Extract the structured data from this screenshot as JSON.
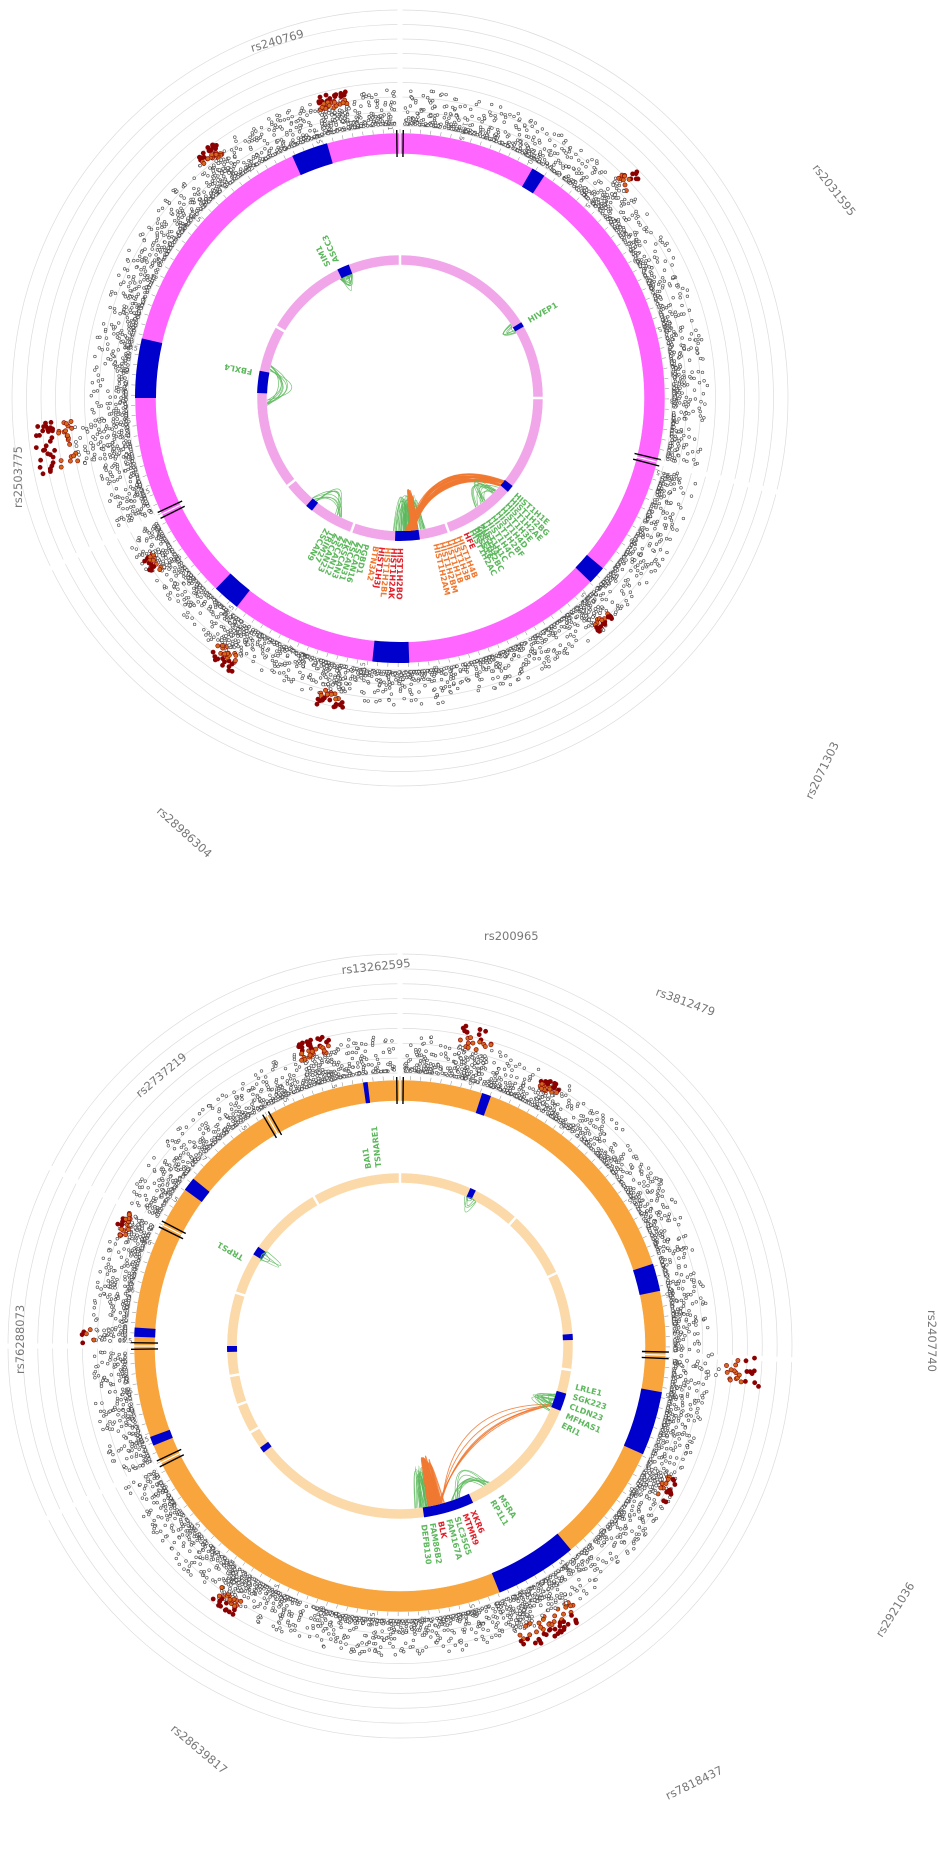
{
  "colors": {
    "background": "#ffffff",
    "grid": "#dcdcdc",
    "manhattan_point": "#4a4a4a",
    "sig_high": "#8b0000",
    "sig_mid": "#d2691e",
    "snp_label": "#777777",
    "gene_green": "#5cb85c",
    "gene_orange": "#f07830",
    "gene_red": "#e0202a",
    "highlight": "#0000cc"
  },
  "chart_data": [
    {
      "type": "circos",
      "ideogram_color": "#ff66ff",
      "inner_color": "#f2a6ea",
      "snp_labels": [
        {
          "id": "snp1",
          "text": "rs240769"
        },
        {
          "id": "snp2",
          "text": "rs2031595"
        },
        {
          "id": "snp3",
          "text": "rs2503775"
        },
        {
          "id": "snp4",
          "text": "rs2071303"
        },
        {
          "id": "snp5",
          "text": "rs28986304"
        },
        {
          "id": "snp6",
          "text": "rs200965"
        }
      ],
      "outer_ticks": [
        "28",
        "27.5",
        "27",
        "26.5",
        "26",
        "25.5",
        "25",
        "12.5",
        "12",
        "11.5",
        "11",
        "10.5",
        "101",
        "100.5",
        "100",
        "99.5",
        "99",
        "98.5",
        "98",
        "97.5",
        "29",
        "28.5"
      ],
      "genes": [
        {
          "text": "ASCC3",
          "color": "green"
        },
        {
          "text": "SIM1",
          "color": "green"
        },
        {
          "text": "HIVEP1",
          "color": "green"
        },
        {
          "text": "FBXL4",
          "color": "green"
        },
        {
          "text": "HIST1H1E",
          "color": "green"
        },
        {
          "text": "HIST1H2BG",
          "color": "green"
        },
        {
          "text": "HIST1H2AE",
          "color": "green"
        },
        {
          "text": "HIST1H3E",
          "color": "green"
        },
        {
          "text": "HIST1H4D",
          "color": "green"
        },
        {
          "text": "HIST1H2BF",
          "color": "green"
        },
        {
          "text": "HIST1H4C",
          "color": "green"
        },
        {
          "text": "HIST1H1C",
          "color": "green"
        },
        {
          "text": "HIST1H2BC",
          "color": "green"
        },
        {
          "text": "HIST1H2AC",
          "color": "green"
        },
        {
          "text": "HFE",
          "color": "red"
        },
        {
          "text": "HIST1H4B",
          "color": "orange"
        },
        {
          "text": "HIST1H3B",
          "color": "orange"
        },
        {
          "text": "HIST1H1B",
          "color": "orange"
        },
        {
          "text": "HIST1H2BM",
          "color": "orange"
        },
        {
          "text": "HIST1H2AM",
          "color": "orange"
        },
        {
          "text": "HIST1H2BO",
          "color": "red"
        },
        {
          "text": "HIST1H2AK",
          "color": "red"
        },
        {
          "text": "HIST1H2BL",
          "color": "orange"
        },
        {
          "text": "HIST1H3J",
          "color": "red"
        },
        {
          "text": "BTN3A2",
          "color": "orange"
        },
        {
          "text": "ZNF184",
          "color": "green"
        },
        {
          "text": "PRSS16",
          "color": "green"
        },
        {
          "text": "PGBD1",
          "color": "green"
        },
        {
          "text": "ZSCAN16",
          "color": "green"
        },
        {
          "text": "ZSCAN31",
          "color": "green"
        },
        {
          "text": "ZKSCAN3",
          "color": "green"
        },
        {
          "text": "ZSCAN12",
          "color": "green"
        },
        {
          "text": "ZSCAN23",
          "color": "green"
        },
        {
          "text": "TRIM27",
          "color": "green"
        },
        {
          "text": "ZSCAN9",
          "color": "green"
        }
      ]
    },
    {
      "type": "circos",
      "ideogram_color": "#f7a53c",
      "inner_color": "#fbd9a8",
      "snp_labels": [
        {
          "id": "snp1",
          "text": "rs13262595"
        },
        {
          "id": "snp2",
          "text": "rs3812479"
        },
        {
          "id": "snp3",
          "text": "rs2737219"
        },
        {
          "id": "snp4",
          "text": "rs76288073"
        },
        {
          "id": "snp5",
          "text": "rs2407740"
        },
        {
          "id": "snp6",
          "text": "rs2921036"
        },
        {
          "id": "snp7",
          "text": "rs28639817"
        },
        {
          "id": "snp8",
          "text": "rs7818437"
        }
      ],
      "outer_ticks": [
        "1",
        "1.5",
        "2",
        "2.5",
        "3",
        "3.5",
        "4",
        "4.5",
        "8",
        "8.5",
        "9",
        "9.5",
        "10",
        "10.5",
        "11",
        "11.5",
        "12",
        "12.5",
        "13",
        "13.5",
        "14",
        "14.5",
        "15",
        "15.5",
        "65",
        "65.5",
        "66",
        "116",
        "116.5",
        "117",
        "117.5",
        "145",
        "145.5"
      ],
      "genes": [
        {
          "text": "TSNARE1",
          "color": "green"
        },
        {
          "text": "BAI1",
          "color": "green"
        },
        {
          "text": "TRPS1",
          "color": "green"
        },
        {
          "text": "LRLE1",
          "color": "green"
        },
        {
          "text": "SGK223",
          "color": "green"
        },
        {
          "text": "CLDN23",
          "color": "green"
        },
        {
          "text": "MFHAS1",
          "color": "green"
        },
        {
          "text": "ERI1",
          "color": "green"
        },
        {
          "text": "MSRA",
          "color": "green"
        },
        {
          "text": "RP1L1",
          "color": "green"
        },
        {
          "text": "XKR6",
          "color": "red"
        },
        {
          "text": "MTMR9",
          "color": "red"
        },
        {
          "text": "SLC35G5",
          "color": "green"
        },
        {
          "text": "FAM167A",
          "color": "green"
        },
        {
          "text": "BLK",
          "color": "red"
        },
        {
          "text": "FAM86B2",
          "color": "green"
        },
        {
          "text": "DEFB130",
          "color": "green"
        }
      ]
    }
  ]
}
